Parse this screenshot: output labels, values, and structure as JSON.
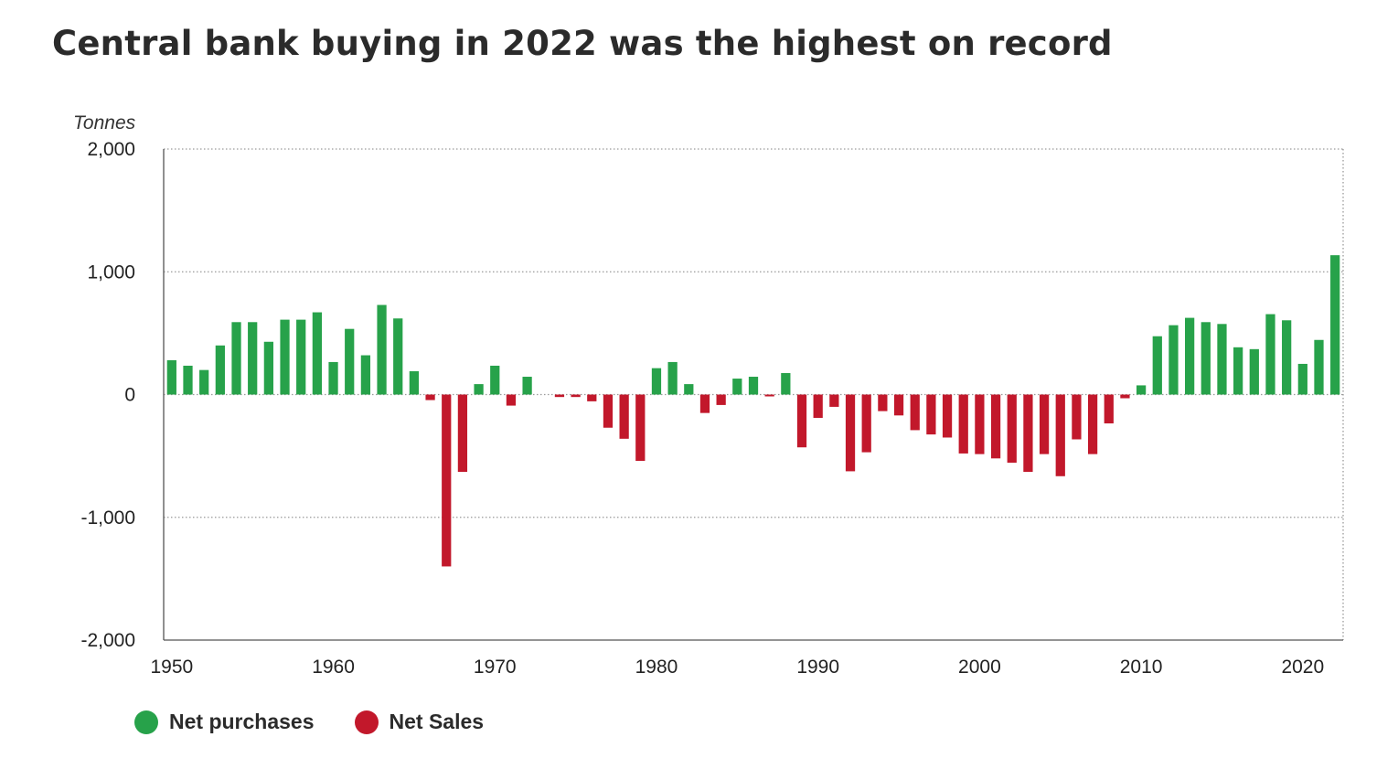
{
  "title": "Central bank buying in 2022 was the highest on record",
  "colors": {
    "positive": "#27a24a",
    "negative": "#c2182b"
  },
  "legend": [
    {
      "label": "Net purchases",
      "color": "#27a24a"
    },
    {
      "label": "Net Sales",
      "color": "#c2182b"
    }
  ],
  "chart_data": {
    "type": "bar",
    "title": "Central bank buying in 2022 was the highest on record",
    "ylabel": "Tonnes",
    "xlabel": "",
    "ylim": [
      -2000,
      2000
    ],
    "yticks": [
      2000,
      1000,
      0,
      -1000,
      -2000
    ],
    "ytick_labels": [
      "2,000",
      "1,000",
      "0",
      "-1,000",
      "-2,000"
    ],
    "xticks": [
      1950,
      1960,
      1970,
      1980,
      1990,
      2000,
      2010,
      2020
    ],
    "xtick_labels": [
      "1950",
      "1960",
      "1970",
      "1980",
      "1990",
      "2000",
      "2010",
      "2020"
    ],
    "grid": "horizontal dotted",
    "legend_position": "bottom-left",
    "categories": [
      1950,
      1951,
      1952,
      1953,
      1954,
      1955,
      1956,
      1957,
      1958,
      1959,
      1960,
      1961,
      1962,
      1963,
      1964,
      1965,
      1966,
      1967,
      1968,
      1969,
      1970,
      1971,
      1972,
      1973,
      1974,
      1975,
      1976,
      1977,
      1978,
      1979,
      1980,
      1981,
      1982,
      1983,
      1984,
      1985,
      1986,
      1987,
      1988,
      1989,
      1990,
      1991,
      1992,
      1993,
      1994,
      1995,
      1996,
      1997,
      1998,
      1999,
      2000,
      2001,
      2002,
      2003,
      2004,
      2005,
      2006,
      2007,
      2008,
      2009,
      2010,
      2011,
      2012,
      2013,
      2014,
      2015,
      2016,
      2017,
      2018,
      2019,
      2020,
      2021,
      2022
    ],
    "values": [
      280,
      235,
      200,
      400,
      590,
      590,
      430,
      610,
      610,
      670,
      265,
      535,
      320,
      730,
      620,
      190,
      -45,
      -1400,
      -630,
      85,
      235,
      -90,
      145,
      0,
      -20,
      -20,
      -55,
      -270,
      -360,
      -540,
      215,
      265,
      85,
      -150,
      -85,
      130,
      145,
      -15,
      175,
      -430,
      -190,
      -100,
      -625,
      -470,
      -135,
      -170,
      -290,
      -325,
      -350,
      -480,
      -485,
      -520,
      -555,
      -630,
      -485,
      -665,
      -365,
      -485,
      -235,
      -30,
      75,
      475,
      565,
      625,
      590,
      575,
      385,
      370,
      655,
      605,
      250,
      445,
      1135
    ]
  }
}
